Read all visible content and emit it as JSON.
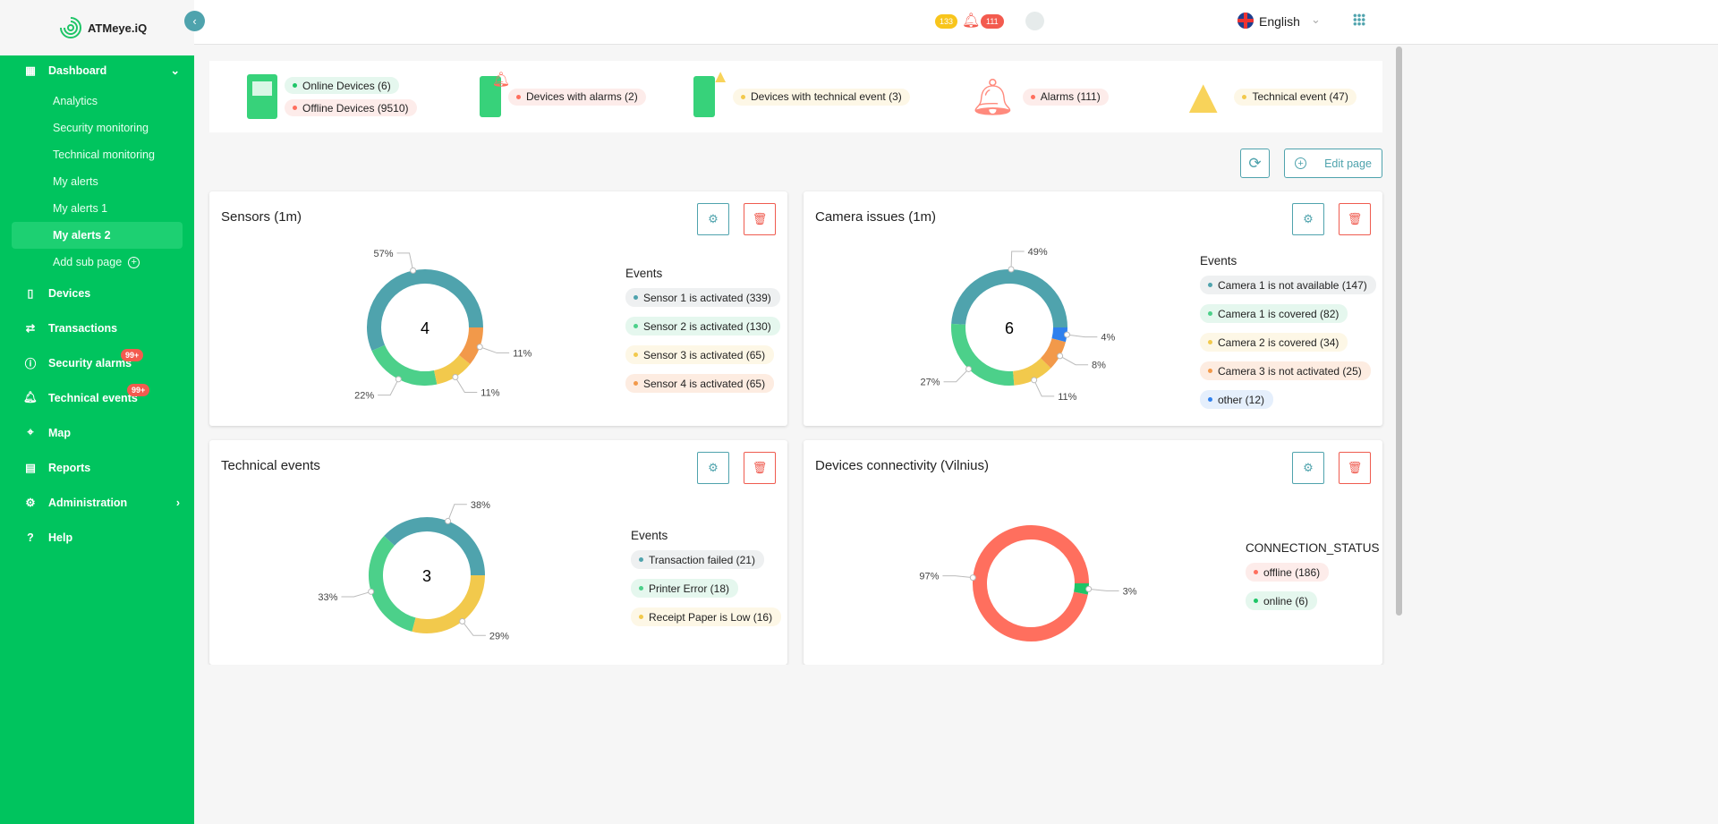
{
  "app": {
    "name": "ATMeye.iQ"
  },
  "header": {
    "badge_yellow": "133",
    "badge_red": "111",
    "language": "English"
  },
  "sidebar": {
    "dashboard": "Dashboard",
    "subs": [
      "Analytics",
      "Security monitoring",
      "Technical monitoring",
      "My alerts",
      "My alerts 1",
      "My alerts 2"
    ],
    "add_sub": "Add sub page",
    "items": [
      {
        "label": "Devices"
      },
      {
        "label": "Transactions"
      },
      {
        "label": "Security alarms",
        "badge": "99+"
      },
      {
        "label": "Technical events",
        "badge": "99+"
      },
      {
        "label": "Map"
      },
      {
        "label": "Reports"
      },
      {
        "label": "Administration"
      },
      {
        "label": "Help"
      }
    ]
  },
  "summary": {
    "online": "Online Devices (6)",
    "offline": "Offline Devices (9510)",
    "with_alarms": "Devices with alarms (2)",
    "with_tech": "Devices with technical event (3)",
    "alarms": "Alarms (111)",
    "tech": "Technical event (47)"
  },
  "toolbar": {
    "edit_page": "Edit page"
  },
  "colors": {
    "teal": "#4fa3ad",
    "green": "#4cd08a",
    "yellow": "#f2c94c",
    "orange": "#f2994a",
    "blue": "#2f80ed",
    "red": "#ff6f5e",
    "online": "#1ec567"
  },
  "chart_data": [
    {
      "type": "pie",
      "title": "Sensors (1m)",
      "center": "4",
      "legend_title": "Events",
      "labels": [
        "Sensor 1 is activated (339)",
        "Sensor 2 is activated (130)",
        "Sensor 3 is activated (65)",
        "Sensor 4 is activated (65)"
      ],
      "values": [
        339,
        130,
        65,
        65
      ],
      "percent_labels": [
        "57%",
        "22%",
        "11%",
        "11%"
      ],
      "colors": [
        "#4fa3ad",
        "#4cd08a",
        "#f2c94c",
        "#f2994a"
      ],
      "bg": [
        "#eef0f1",
        "#e5f7ee",
        "#fdf7e6",
        "#fdece1"
      ]
    },
    {
      "type": "pie",
      "title": "Camera issues (1m)",
      "center": "6",
      "legend_title": "Events",
      "labels": [
        "Camera 1 is not available (147)",
        "Camera 1 is covered (82)",
        "Camera 2 is covered (34)",
        "Camera 3 is not activated (25)",
        "other (12)"
      ],
      "values": [
        147,
        82,
        34,
        25,
        12
      ],
      "percent_labels": [
        "49%",
        "27%",
        "11%",
        "8%",
        "4%"
      ],
      "colors": [
        "#4fa3ad",
        "#4cd08a",
        "#f2c94c",
        "#f2994a",
        "#2f80ed"
      ],
      "bg": [
        "#eef0f1",
        "#e5f7ee",
        "#fdf7e6",
        "#fdece1",
        "#e5effc"
      ]
    },
    {
      "type": "pie",
      "title": "Technical events",
      "center": "3",
      "legend_title": "Events",
      "labels": [
        "Transaction failed (21)",
        "Printer Error (18)",
        "Receipt Paper is Low (16)"
      ],
      "values": [
        21,
        18,
        16
      ],
      "percent_labels": [
        "38%",
        "33%",
        "29%"
      ],
      "colors": [
        "#4fa3ad",
        "#4cd08a",
        "#f2c94c"
      ],
      "bg": [
        "#eef0f1",
        "#e5f7ee",
        "#fdf7e6"
      ]
    },
    {
      "type": "pie",
      "title": "Devices connectivity (Vilnius)",
      "center": "",
      "legend_title": "CONNECTION_STATUS",
      "labels": [
        "offline (186)",
        "online (6)"
      ],
      "values": [
        186,
        6
      ],
      "percent_labels": [
        "97%",
        "3%"
      ],
      "colors": [
        "#ff6f5e",
        "#1ec567"
      ],
      "bg": [
        "#fdecea",
        "#e5f7ee"
      ]
    }
  ]
}
